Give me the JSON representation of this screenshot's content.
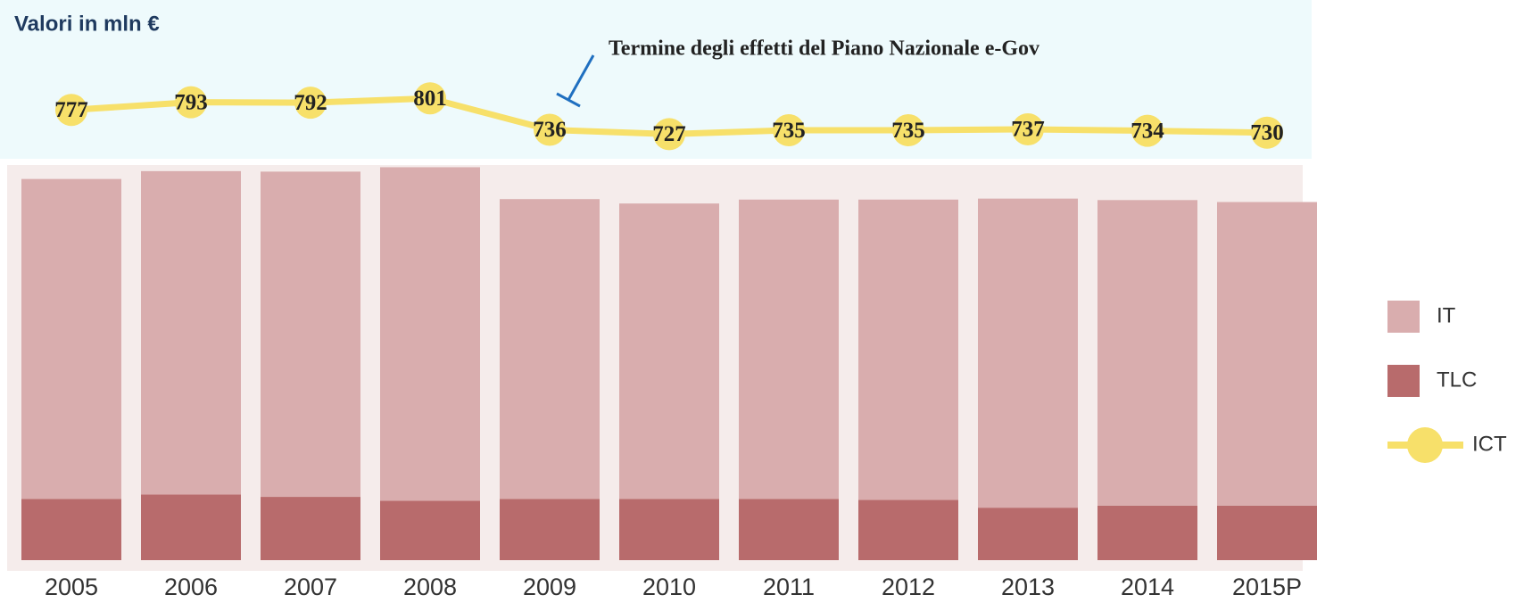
{
  "chart_data": {
    "type": "bar",
    "title": "Valori in mln €",
    "annotation": "Termine degli effetti del Piano Nazionale e-Gov",
    "categories": [
      "2005",
      "2006",
      "2007",
      "2008",
      "2009",
      "2010",
      "2011",
      "2012",
      "2013",
      "2014",
      "2015P"
    ],
    "series": [
      {
        "name": "TLC",
        "color": "#b86b6c",
        "values": [
          125,
          134,
          129,
          121,
          125,
          125,
          125,
          123,
          107,
          111,
          111
        ]
      },
      {
        "name": "IT",
        "color": "#d9adae",
        "values": [
          652,
          659,
          663,
          680,
          611,
          602,
          610,
          612,
          630,
          623,
          619
        ]
      },
      {
        "name": "ICT",
        "color": "#f7e06a",
        "axis": "y2",
        "type": "line",
        "values": [
          777,
          793,
          792,
          801,
          736,
          727,
          735,
          735,
          737,
          734,
          730
        ]
      }
    ],
    "ylim": [
      0,
      800
    ],
    "y2lim": [
      700,
      820
    ]
  }
}
